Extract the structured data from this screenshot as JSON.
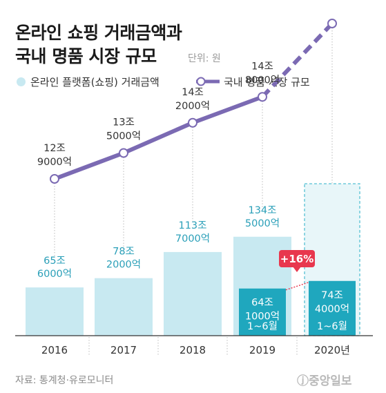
{
  "title_line1": "온라인 쇼핑 거래금액과",
  "title_line2": "국내 명품 시장 규모",
  "unit": "단위: 원",
  "legend": {
    "bars": "온라인 플랫폼(쇼핑) 거래금액",
    "line": "국내 명품 시장 규모"
  },
  "source": "자료: 통계청·유로모니터",
  "logo": "ⓙ중앙일보",
  "colors": {
    "bar": "#c8e9f1",
    "bar_half": "#1fa7be",
    "line": "#7b6ab3",
    "badge": "#e8374e",
    "dashed_box": "#55c0d3",
    "label": "#2a9fb8"
  },
  "chart_data": {
    "type": "bar+line",
    "categories": [
      "2016",
      "2017",
      "2018",
      "2019",
      "2020년"
    ],
    "series": [
      {
        "name": "온라인 플랫폼(쇼핑) 거래금액",
        "type": "bar",
        "unit": "조 원",
        "values": [
          65.6,
          78.2,
          113.7,
          134.5,
          null
        ],
        "labels": [
          [
            "65조",
            "6000억"
          ],
          [
            "78조",
            "2000억"
          ],
          [
            "113조",
            "7000억"
          ],
          [
            "134조",
            "5000억"
          ],
          null
        ]
      },
      {
        "name": "온라인 플랫폼(쇼핑) 거래금액 1~6월",
        "type": "bar",
        "unit": "조 원",
        "values": [
          null,
          null,
          null,
          64.1,
          74.4
        ],
        "labels": [
          null,
          null,
          null,
          [
            "64조",
            "1000억"
          ],
          [
            "74조",
            "4000억"
          ]
        ],
        "period_label": "1~6월"
      },
      {
        "name": "국내 명품 시장 규모",
        "type": "line",
        "unit": "조 원",
        "values": [
          12.9,
          13.5,
          14.2,
          14.8,
          16.5
        ],
        "labels": [
          [
            "12조",
            "9000억"
          ],
          [
            "13조",
            "5000억"
          ],
          [
            "14조",
            "2000억"
          ],
          [
            "14조",
            "8000억"
          ],
          null
        ]
      }
    ],
    "annotation": "+16%"
  }
}
